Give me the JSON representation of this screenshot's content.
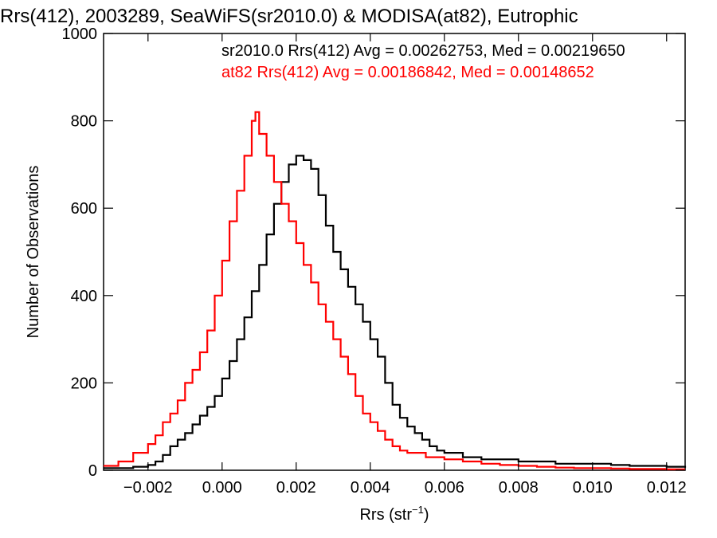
{
  "chart_data": {
    "type": "line",
    "title": "Rrs(412), 2003289, SeaWiFS(sr2010.0) & MODISA(at82), Eutrophic",
    "xlabel": "Rrs (str",
    "xlabel_sup": "−1",
    "xlabel_close": ")",
    "ylabel": "Number of Observations",
    "xlim": [
      -0.0032,
      0.0125
    ],
    "ylim": [
      0,
      1000
    ],
    "xticks": [
      -0.002,
      0.0,
      0.002,
      0.004,
      0.006,
      0.008,
      0.01,
      0.012
    ],
    "xtick_labels": [
      "−0.002",
      "0.000",
      "0.002",
      "0.004",
      "0.006",
      "0.008",
      "0.010",
      "0.012"
    ],
    "yticks": [
      0,
      200,
      400,
      600,
      800,
      1000
    ],
    "ytick_labels": [
      "0",
      "200",
      "400",
      "600",
      "800",
      "1000"
    ],
    "grid": false,
    "legend_position": "top-right",
    "series": [
      {
        "name": "sr2010.0 Rrs(412) Avg = 0.00262753, Med = 0.00219650",
        "color": "#000000",
        "x": [
          -0.0032,
          -0.0028,
          -0.0024,
          -0.002,
          -0.0018,
          -0.0016,
          -0.0014,
          -0.0012,
          -0.001,
          -0.0008,
          -0.0006,
          -0.0004,
          -0.0002,
          0.0,
          0.0002,
          0.0004,
          0.0006,
          0.0008,
          0.001,
          0.0012,
          0.0014,
          0.0016,
          0.0018,
          0.002,
          0.0022,
          0.0024,
          0.0026,
          0.0028,
          0.003,
          0.0032,
          0.0034,
          0.0036,
          0.0038,
          0.004,
          0.0042,
          0.0044,
          0.0046,
          0.0048,
          0.005,
          0.0052,
          0.0054,
          0.0056,
          0.0058,
          0.006,
          0.0065,
          0.007,
          0.0075,
          0.008,
          0.0085,
          0.009,
          0.0095,
          0.01,
          0.0105,
          0.011,
          0.0115,
          0.012,
          0.0125
        ],
        "y": [
          5,
          5,
          8,
          12,
          20,
          35,
          55,
          70,
          85,
          105,
          125,
          145,
          170,
          210,
          250,
          300,
          350,
          410,
          470,
          540,
          610,
          660,
          700,
          720,
          710,
          690,
          630,
          560,
          500,
          460,
          420,
          380,
          340,
          300,
          260,
          200,
          150,
          120,
          100,
          85,
          70,
          55,
          45,
          40,
          30,
          25,
          25,
          20,
          20,
          15,
          15,
          15,
          12,
          10,
          10,
          8,
          6
        ]
      },
      {
        "name": "at82 Rrs(412) Avg = 0.00186842, Med = 0.00148652",
        "color": "#ff0000",
        "x": [
          -0.0032,
          -0.0028,
          -0.0024,
          -0.002,
          -0.0018,
          -0.0016,
          -0.0014,
          -0.0012,
          -0.001,
          -0.0008,
          -0.0006,
          -0.0004,
          -0.0002,
          0.0,
          0.0002,
          0.0004,
          0.0006,
          0.0008,
          0.0009,
          0.001,
          0.0012,
          0.0014,
          0.0016,
          0.0018,
          0.002,
          0.0022,
          0.0024,
          0.0026,
          0.0028,
          0.003,
          0.0032,
          0.0034,
          0.0036,
          0.0038,
          0.004,
          0.0042,
          0.0044,
          0.0046,
          0.0048,
          0.005,
          0.0055,
          0.006,
          0.0065,
          0.007,
          0.0075,
          0.008,
          0.0085,
          0.009,
          0.0095,
          0.01,
          0.0105,
          0.011,
          0.0115,
          0.012,
          0.0125
        ],
        "y": [
          10,
          20,
          40,
          60,
          80,
          110,
          130,
          160,
          200,
          230,
          270,
          320,
          400,
          480,
          570,
          640,
          720,
          800,
          820,
          770,
          720,
          660,
          610,
          570,
          520,
          470,
          430,
          380,
          340,
          300,
          260,
          220,
          170,
          130,
          110,
          90,
          70,
          55,
          45,
          40,
          30,
          25,
          20,
          15,
          12,
          10,
          8,
          6,
          5,
          5,
          4,
          3,
          3,
          2,
          2
        ]
      }
    ]
  }
}
